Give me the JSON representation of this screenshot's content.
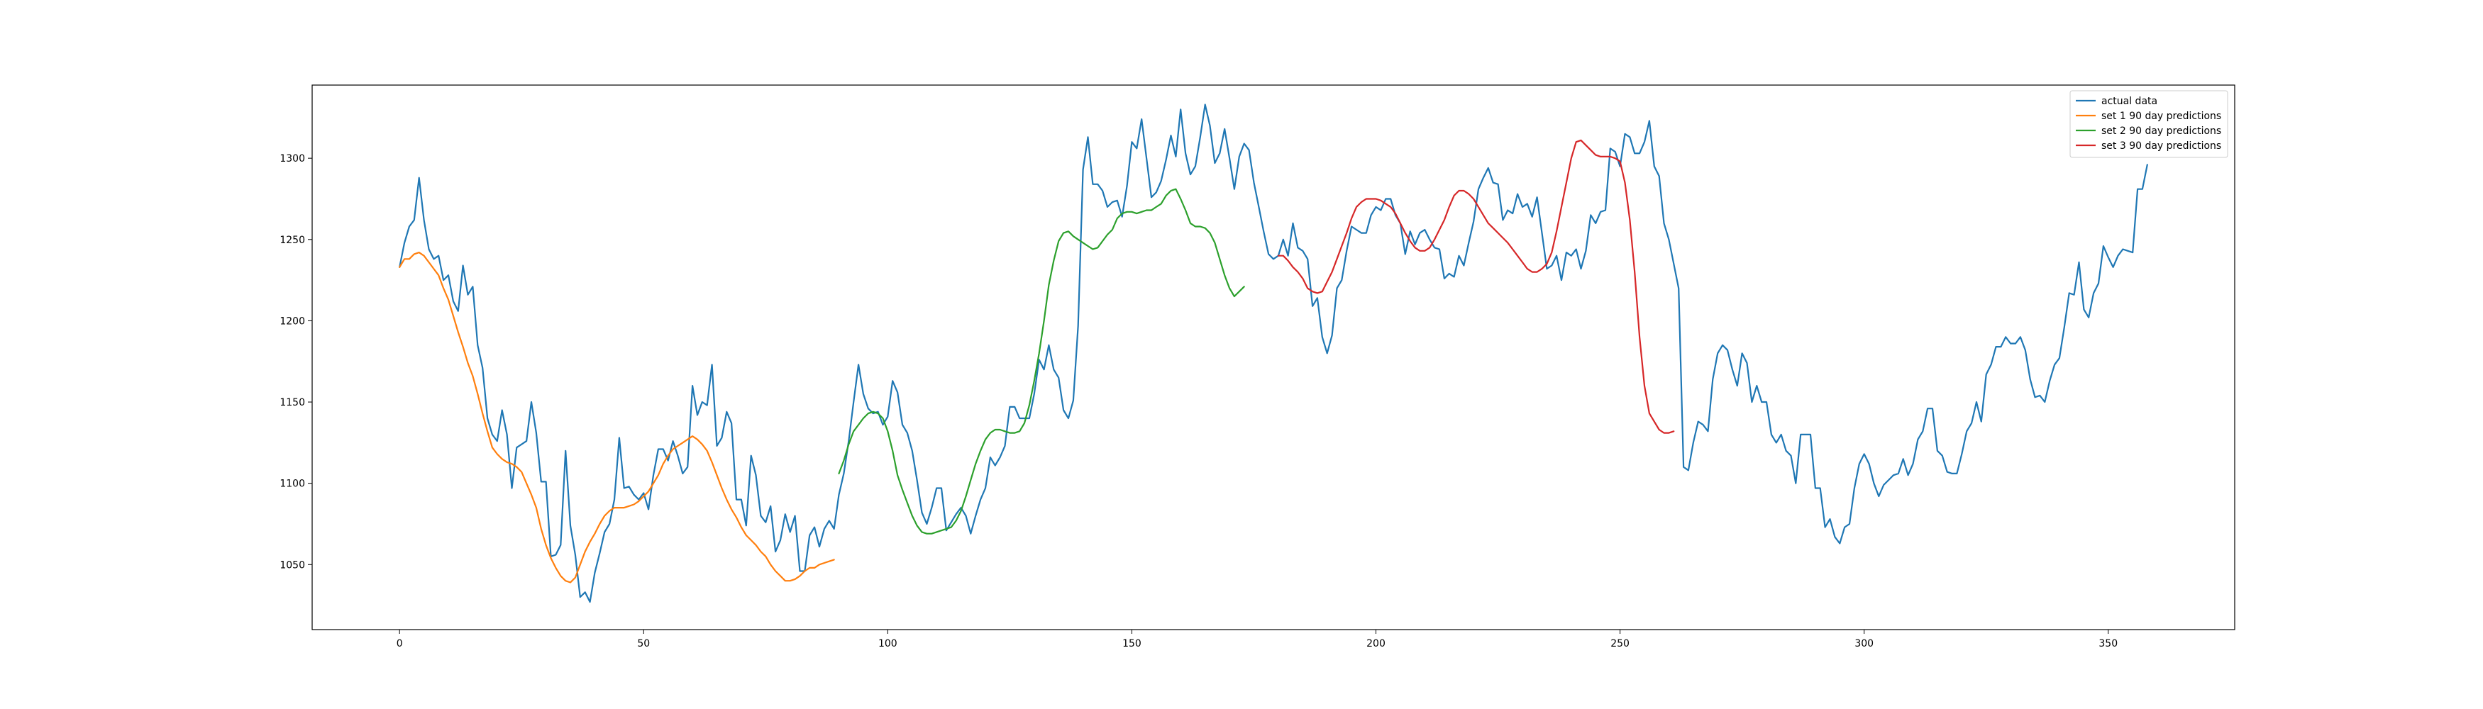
{
  "chart_data": {
    "type": "line",
    "xlim": [
      -17.9,
      375.9
    ],
    "ylim": [
      1010,
      1345
    ],
    "xticks": [
      0,
      50,
      100,
      150,
      200,
      250,
      300,
      350
    ],
    "yticks": [
      1050,
      1100,
      1150,
      1200,
      1250,
      1300
    ],
    "grid": false,
    "legend_position": "top-right",
    "series": [
      {
        "name": "actual data",
        "color": "#1f77b4",
        "x_start": 0,
        "values": [
          1233,
          1248,
          1258,
          1262,
          1288,
          1262,
          1244,
          1238,
          1240,
          1225,
          1228,
          1212,
          1206,
          1234,
          1216,
          1221,
          1185,
          1171,
          1140,
          1130,
          1126,
          1145,
          1130,
          1097,
          1122,
          1124,
          1126,
          1150,
          1131,
          1101,
          1101,
          1055,
          1056,
          1062,
          1120,
          1074,
          1056,
          1030,
          1033,
          1027,
          1045,
          1057,
          1070,
          1075,
          1090,
          1128,
          1097,
          1098,
          1093,
          1090,
          1094,
          1084,
          1105,
          1121,
          1121,
          1114,
          1126,
          1117,
          1106,
          1110,
          1160,
          1142,
          1150,
          1148,
          1173,
          1123,
          1128,
          1144,
          1137,
          1090,
          1090,
          1074,
          1117,
          1105,
          1080,
          1076,
          1086,
          1058,
          1065,
          1081,
          1070,
          1080,
          1046,
          1046,
          1068,
          1073,
          1061,
          1072,
          1077,
          1072,
          1093,
          1106,
          1126,
          1150,
          1173,
          1155,
          1146,
          1143,
          1144,
          1136,
          1141,
          1163,
          1156,
          1136,
          1131,
          1120,
          1102,
          1082,
          1075,
          1085,
          1097,
          1097,
          1071,
          1076,
          1081,
          1085,
          1080,
          1069,
          1080,
          1090,
          1097,
          1116,
          1111,
          1116,
          1123,
          1147,
          1147,
          1140,
          1140,
          1140,
          1155,
          1176,
          1170,
          1185,
          1170,
          1165,
          1145,
          1140,
          1151,
          1197,
          1293,
          1313,
          1284,
          1284,
          1280,
          1270,
          1273,
          1274,
          1264,
          1283,
          1310,
          1306,
          1324,
          1300,
          1276,
          1279,
          1286,
          1299,
          1314,
          1301,
          1330,
          1303,
          1290,
          1295,
          1313,
          1333,
          1320,
          1297,
          1303,
          1318,
          1300,
          1281,
          1301,
          1309,
          1305,
          1285,
          1270,
          1255,
          1241,
          1238,
          1240,
          1250,
          1240,
          1260,
          1245,
          1243,
          1238,
          1209,
          1214,
          1190,
          1180,
          1191,
          1220,
          1225,
          1243,
          1258,
          1256,
          1254,
          1254,
          1265,
          1270,
          1268,
          1275,
          1275,
          1265,
          1260,
          1241,
          1255,
          1247,
          1254,
          1256,
          1250,
          1245,
          1244,
          1226,
          1229,
          1227,
          1240,
          1234,
          1248,
          1261,
          1281,
          1288,
          1294,
          1285,
          1284,
          1262,
          1268,
          1266,
          1278,
          1270,
          1272,
          1264,
          1276,
          1254,
          1232,
          1234,
          1240,
          1225,
          1242,
          1240,
          1244,
          1232,
          1243,
          1265,
          1260,
          1267,
          1268,
          1306,
          1304,
          1295,
          1315,
          1313,
          1303,
          1303,
          1310,
          1323,
          1295,
          1289,
          1260,
          1250,
          1235,
          1220,
          1110,
          1108,
          1125,
          1138,
          1136,
          1132,
          1164,
          1180,
          1185,
          1182,
          1170,
          1160,
          1180,
          1174,
          1150,
          1160,
          1150,
          1150,
          1130,
          1125,
          1130,
          1120,
          1117,
          1100,
          1130,
          1130,
          1130,
          1097,
          1097,
          1073,
          1078,
          1067,
          1063,
          1073,
          1075,
          1097,
          1112,
          1118,
          1112,
          1100,
          1092,
          1099,
          1102,
          1105,
          1106,
          1115,
          1105,
          1112,
          1127,
          1132,
          1146,
          1146,
          1120,
          1117,
          1107,
          1106,
          1106,
          1118,
          1132,
          1137,
          1150,
          1138,
          1167,
          1173,
          1184,
          1184,
          1190,
          1186,
          1186,
          1190,
          1182,
          1164,
          1153,
          1154,
          1150,
          1163,
          1173,
          1177,
          1196,
          1217,
          1216,
          1236,
          1207,
          1202,
          1217,
          1223,
          1246,
          1239,
          1233,
          1240,
          1244,
          1243,
          1242,
          1281,
          1281,
          1296
        ]
      },
      {
        "name": "set 1 90 day predictions",
        "color": "#ff7f0e",
        "x_start": 0,
        "values": [
          1233,
          1238,
          1238,
          1241,
          1242,
          1240,
          1236,
          1232,
          1228,
          1220,
          1213,
          1203,
          1193,
          1184,
          1174,
          1166,
          1155,
          1143,
          1132,
          1122,
          1118,
          1115,
          1113,
          1112,
          1110,
          1107,
          1100,
          1093,
          1085,
          1072,
          1062,
          1054,
          1048,
          1043,
          1040,
          1039,
          1042,
          1050,
          1058,
          1064,
          1069,
          1075,
          1080,
          1083,
          1085,
          1085,
          1085,
          1086,
          1087,
          1089,
          1092,
          1095,
          1100,
          1105,
          1112,
          1117,
          1121,
          1123,
          1125,
          1127,
          1129,
          1127,
          1124,
          1120,
          1113,
          1105,
          1097,
          1090,
          1084,
          1079,
          1073,
          1068,
          1065,
          1062,
          1058,
          1055,
          1050,
          1046,
          1043,
          1040,
          1040,
          1041,
          1043,
          1046,
          1048,
          1048,
          1050,
          1051,
          1052,
          1053
        ]
      },
      {
        "name": "set 2 90 day predictions",
        "color": "#2ca02c",
        "x_start": 90,
        "values": [
          1106,
          1114,
          1124,
          1132,
          1136,
          1140,
          1143,
          1144,
          1143,
          1140,
          1132,
          1120,
          1105,
          1096,
          1088,
          1080,
          1074,
          1070,
          1069,
          1069,
          1070,
          1071,
          1072,
          1073,
          1077,
          1083,
          1092,
          1102,
          1112,
          1120,
          1127,
          1131,
          1133,
          1133,
          1132,
          1131,
          1131,
          1132,
          1137,
          1148,
          1163,
          1180,
          1200,
          1222,
          1237,
          1249,
          1254,
          1255,
          1252,
          1250,
          1248,
          1246,
          1244,
          1245,
          1249,
          1253,
          1256,
          1263,
          1266,
          1267,
          1267,
          1266,
          1267,
          1268,
          1268,
          1270,
          1272,
          1277,
          1280,
          1281,
          1275,
          1268,
          1260,
          1258,
          1258,
          1257,
          1254,
          1248,
          1238,
          1228,
          1220,
          1215,
          1218,
          1221
        ]
      },
      {
        "name": "set 3 90 day predictions",
        "color": "#d62728",
        "x_start": 180,
        "values": [
          1240,
          1240,
          1237,
          1233,
          1230,
          1226,
          1220,
          1218,
          1217,
          1218,
          1224,
          1230,
          1238,
          1246,
          1254,
          1263,
          1270,
          1273,
          1275,
          1275,
          1275,
          1274,
          1272,
          1270,
          1266,
          1260,
          1254,
          1249,
          1245,
          1243,
          1243,
          1245,
          1250,
          1256,
          1262,
          1270,
          1277,
          1280,
          1280,
          1278,
          1275,
          1270,
          1265,
          1260,
          1257,
          1254,
          1251,
          1248,
          1244,
          1240,
          1236,
          1232,
          1230,
          1230,
          1232,
          1235,
          1242,
          1255,
          1270,
          1285,
          1300,
          1310,
          1311,
          1308,
          1305,
          1302,
          1301,
          1301,
          1301,
          1300,
          1298,
          1285,
          1262,
          1230,
          1190,
          1160,
          1143,
          1138,
          1133,
          1131,
          1131,
          1132
        ]
      }
    ]
  }
}
